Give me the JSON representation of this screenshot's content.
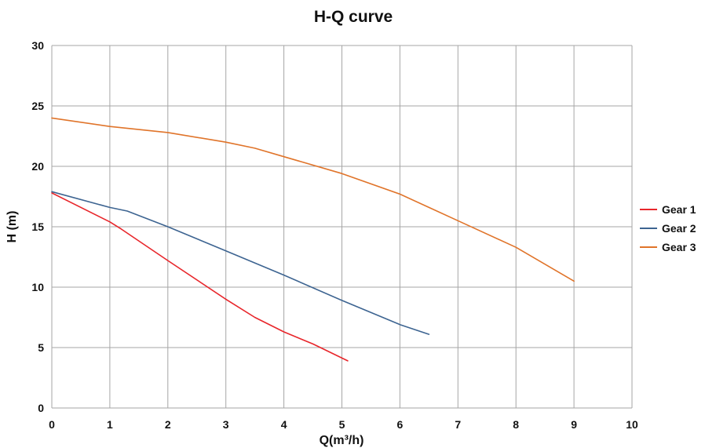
{
  "chart_data": {
    "type": "line",
    "title": "H-Q  curve",
    "xlabel": "Q(m³/h)",
    "ylabel": "H  (m)",
    "xlim": [
      0,
      10
    ],
    "ylim": [
      0,
      30
    ],
    "xticks": [
      "0",
      "1",
      "2",
      "3",
      "4",
      "5",
      "6",
      "7",
      "8",
      "9",
      "10"
    ],
    "yticks": [
      "0",
      "5",
      "10",
      "15",
      "20",
      "25",
      "30"
    ],
    "grid": true,
    "legend_position": "right",
    "series": [
      {
        "name": "Gear 1",
        "color": "#e8262b",
        "x": [
          0,
          1,
          1.2,
          2,
          3,
          3.5,
          4,
          4.5,
          5.1
        ],
        "y": [
          17.8,
          15.4,
          14.8,
          12.2,
          9.0,
          7.5,
          6.3,
          5.3,
          3.9
        ]
      },
      {
        "name": "Gear 2",
        "color": "#3d6491",
        "x": [
          0,
          1,
          1.3,
          2,
          3,
          4,
          5,
          6,
          6.5
        ],
        "y": [
          17.9,
          16.6,
          16.3,
          15.0,
          13.0,
          11.0,
          8.9,
          6.9,
          6.1
        ]
      },
      {
        "name": "Gear 3",
        "color": "#e0742a",
        "x": [
          0,
          1,
          2,
          3,
          3.5,
          4,
          5,
          6,
          6.5,
          7,
          8,
          9
        ],
        "y": [
          24.0,
          23.3,
          22.8,
          22.0,
          21.5,
          20.8,
          19.4,
          17.7,
          16.6,
          15.5,
          13.3,
          10.5
        ]
      }
    ]
  }
}
